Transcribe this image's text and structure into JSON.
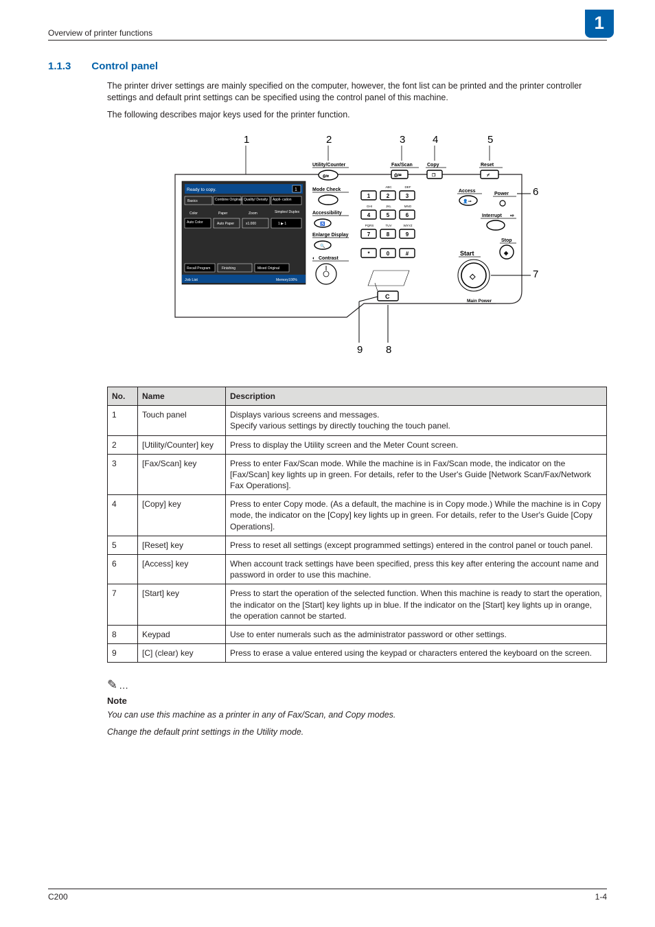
{
  "colors": {
    "brand": "#0060a9",
    "text": "#231f20",
    "table_header_bg": "#dddddc",
    "panel_bg": "#ffffff",
    "touch_bg": "#2c2c2c"
  },
  "header": {
    "left": "Overview of printer functions",
    "chapter": "1"
  },
  "section": {
    "number": "1.1.3",
    "title": "Control panel",
    "paragraphs": [
      "The printer driver settings are mainly specified on the computer, however, the font list can be printed and the printer controller settings and default print settings can be specified using the control panel of this machine.",
      "The following describes major keys used for the printer function."
    ]
  },
  "diagram": {
    "callouts": [
      "1",
      "2",
      "3",
      "4",
      "5",
      "6",
      "7",
      "8",
      "9"
    ],
    "touch": {
      "title": "Ready to copy.",
      "count": "1",
      "tabs": [
        "Basics",
        "Combine Originals",
        "Quality/ Density",
        "Appli- cation"
      ],
      "rows": [
        [
          "Color",
          "Paper",
          "Zoom",
          "Simplex/ Duplex"
        ],
        [
          "Auto Color",
          "Auto Paper",
          "x1.000",
          "1 ▶ 1"
        ]
      ],
      "bottom_left": "Recall Program",
      "bottom_mid": "Finishing",
      "bottom_right": "Mixed Original",
      "joblist": "Job List",
      "memory": "Memory100%"
    },
    "panel": {
      "utility": "Utility/Counter",
      "mode_check": "Mode Check",
      "accessibility": "Accessibility",
      "enlarge": "Enlarge Display",
      "contrast": "Contrast",
      "fax_scan": "Fax/Scan",
      "copy": "Copy",
      "reset": "Reset",
      "access": "Access",
      "power": "Power",
      "interrupt": "Interrupt",
      "stop": "Stop",
      "start": "Start",
      "main_power": "Main Power",
      "keypad_labels": [
        "ABC",
        "DEF",
        "GHI",
        "JKL",
        "MNO",
        "PQRS",
        "TUV",
        "WXYZ"
      ],
      "keys": [
        "1",
        "2",
        "3",
        "4",
        "5",
        "6",
        "7",
        "8",
        "9",
        "*",
        "0",
        "#"
      ],
      "clear": "C"
    }
  },
  "table": {
    "headers": [
      "No.",
      "Name",
      "Description"
    ],
    "rows": [
      {
        "no": "1",
        "name": "Touch panel",
        "desc": "Displays various screens and messages.\nSpecify various settings by directly touching the touch panel."
      },
      {
        "no": "2",
        "name": "[Utility/Counter] key",
        "desc": "Press to display the Utility screen and the Meter Count screen."
      },
      {
        "no": "3",
        "name": "[Fax/Scan] key",
        "desc": "Press to enter Fax/Scan mode. While the machine is in Fax/Scan mode, the indicator on the [Fax/Scan] key lights up in green. For details, refer to the User's Guide [Network Scan/Fax/Network Fax Operations]."
      },
      {
        "no": "4",
        "name": "[Copy] key",
        "desc": "Press to enter Copy mode. (As a default, the machine is in Copy mode.) While the machine is in Copy mode, the indicator on the [Copy] key lights up in green. For details, refer to the User's Guide [Copy Operations]."
      },
      {
        "no": "5",
        "name": "[Reset] key",
        "desc": "Press to reset all settings (except programmed settings) entered in the control panel or touch panel."
      },
      {
        "no": "6",
        "name": "[Access] key",
        "desc": "When account track settings have been specified, press this key after entering the account name and password in order to use this machine."
      },
      {
        "no": "7",
        "name": "[Start] key",
        "desc": "Press to start the operation of the selected function. When this machine is ready to start the operation, the indicator on the [Start] key lights up in blue. If the indicator on the [Start] key lights up in orange, the operation cannot be started."
      },
      {
        "no": "8",
        "name": "Keypad",
        "desc": "Use to enter numerals such as the administrator password or other settings."
      },
      {
        "no": "9",
        "name": "[C] (clear) key",
        "desc": "Press to erase a value entered using the keypad or characters entered the keyboard on the screen."
      }
    ]
  },
  "note": {
    "label": "Note",
    "lines": [
      "You can use this machine as a printer in any of Fax/Scan, and Copy modes.",
      "Change the default print settings in the Utility mode."
    ]
  },
  "footer": {
    "left": "C200",
    "right": "1-4"
  }
}
